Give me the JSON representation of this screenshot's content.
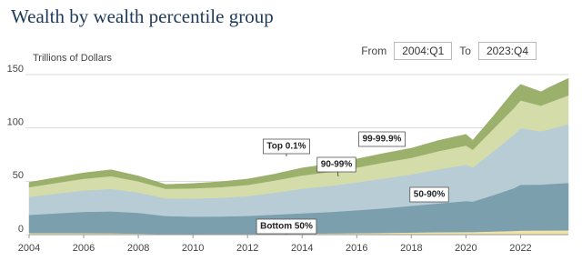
{
  "chart_data": {
    "type": "stacked_area",
    "title": "Wealth by wealth percentile group",
    "y_label": "Trillions of Dollars",
    "controls": {
      "from_label": "From",
      "from_value": "2004:Q1",
      "to_label": "To",
      "to_value": "2023:Q4"
    },
    "x": [
      2004,
      2005,
      2006,
      2007,
      2008,
      2009,
      2010,
      2011,
      2012,
      2013,
      2014,
      2015,
      2016,
      2017,
      2018,
      2019,
      2020,
      2020.25,
      2021,
      2021.75,
      2022,
      2022.75,
      2023,
      2023.75
    ],
    "xlim": [
      2004,
      2023.75
    ],
    "xticks": [
      2004,
      2006,
      2008,
      2010,
      2012,
      2014,
      2016,
      2018,
      2020,
      2022
    ],
    "ylim": [
      0,
      150
    ],
    "yticks": [
      0,
      50,
      100,
      150
    ],
    "grid": true,
    "series": [
      {
        "name": "Bottom 50%",
        "color": "#f1e2a8",
        "values": [
          1.5,
          1.5,
          1.4,
          1.3,
          1.0,
          0.5,
          0.4,
          0.5,
          0.6,
          0.8,
          1.0,
          1.2,
          1.4,
          1.7,
          2.0,
          2.3,
          2.5,
          2.5,
          3.0,
          3.5,
          3.8,
          3.9,
          3.9,
          4.0
        ]
      },
      {
        "name": "50-90%",
        "color": "#7b9fad",
        "values": [
          17,
          18.5,
          20,
          20.5,
          19.5,
          17,
          16.5,
          16.5,
          17,
          18,
          19,
          20,
          21.5,
          23,
          25,
          27,
          29,
          28.5,
          34,
          40,
          43,
          43,
          43.5,
          44.5
        ]
      },
      {
        "name": "90-99%",
        "color": "#b8ccd5",
        "values": [
          17,
          18.5,
          20,
          21,
          19,
          16.5,
          17,
          17.5,
          18.5,
          20.5,
          23,
          24.5,
          26,
          28,
          29.5,
          32,
          34,
          32,
          41,
          50,
          53,
          50,
          51,
          55
        ]
      },
      {
        "name": "99-99.9%",
        "color": "#d4dcaa",
        "values": [
          9,
          10,
          11,
          12,
          10.5,
          9,
          9.5,
          10,
          10.5,
          11.5,
          12.5,
          13,
          14,
          15,
          15.5,
          17,
          18,
          16.5,
          21,
          25,
          26,
          24,
          25,
          27
        ]
      },
      {
        "name": "Top 0.1%",
        "color": "#9bb06b",
        "values": [
          4.5,
          5,
          5.5,
          6,
          5,
          4,
          4.5,
          5,
          5.5,
          6,
          7,
          7.5,
          8,
          8.5,
          9,
          10,
          10.5,
          9,
          12,
          16,
          15,
          13,
          14,
          16
        ]
      }
    ]
  }
}
